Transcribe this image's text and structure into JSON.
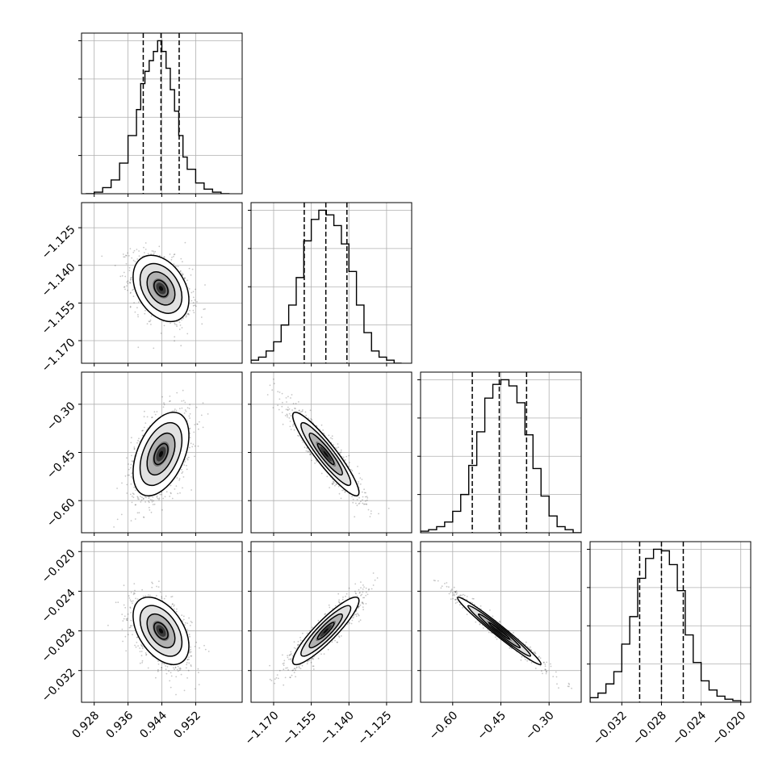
{
  "chart_data": {
    "type": "scatter",
    "kind": "corner-plot",
    "parameters": [
      "",
      "",
      "",
      ""
    ],
    "grid": true,
    "axes_ranges": [
      [
        0.925,
        0.963
      ],
      [
        -1.179,
        -1.115
      ],
      [
        -0.7,
        -0.2
      ],
      [
        -0.0352,
        -0.019
      ]
    ],
    "ticks": [
      {
        "values": [
          0.928,
          0.936,
          0.944,
          0.952
        ],
        "labels": [
          "0.928",
          "0.936",
          "0.944",
          "0.952"
        ]
      },
      {
        "values": [
          -1.17,
          -1.155,
          -1.14,
          -1.125
        ],
        "labels": [
          "−1.170",
          "−1.155",
          "−1.140",
          "−1.125"
        ]
      },
      {
        "values": [
          -0.6,
          -0.45,
          -0.3
        ],
        "labels": [
          "−0.60",
          "−0.45",
          "−0.30"
        ]
      },
      {
        "values": [
          -0.032,
          -0.028,
          -0.024,
          -0.02
        ],
        "labels": [
          "−0.032",
          "−0.028",
          "−0.024",
          "−0.020"
        ]
      }
    ],
    "quantiles": [
      [
        0.9396,
        0.9438,
        0.9481
      ],
      [
        -1.1578,
        -1.1492,
        -1.1408
      ],
      [
        -0.539,
        -0.455,
        -0.37
      ],
      [
        -0.0302,
        -0.028,
        -0.0258
      ]
    ],
    "histograms": [
      {
        "bins": [
          0.926,
          0.928,
          0.93,
          0.932,
          0.934,
          0.936,
          0.938,
          0.939,
          0.94,
          0.941,
          0.942,
          0.943,
          0.944,
          0.945,
          0.946,
          0.947,
          0.948,
          0.949,
          0.95,
          0.952,
          0.954,
          0.956,
          0.958,
          0.96
        ],
        "counts": [
          0.0,
          0.01,
          0.04,
          0.09,
          0.2,
          0.38,
          0.55,
          0.72,
          0.8,
          0.87,
          0.93,
          1.0,
          0.93,
          0.82,
          0.68,
          0.54,
          0.38,
          0.24,
          0.16,
          0.07,
          0.03,
          0.01,
          0.0
        ]
      },
      {
        "bins": [
          -1.179,
          -1.176,
          -1.173,
          -1.17,
          -1.167,
          -1.164,
          -1.161,
          -1.158,
          -1.155,
          -1.152,
          -1.149,
          -1.146,
          -1.143,
          -1.14,
          -1.137,
          -1.134,
          -1.131,
          -1.128,
          -1.125,
          -1.122,
          -1.119
        ],
        "counts": [
          0.02,
          0.04,
          0.08,
          0.14,
          0.25,
          0.38,
          0.56,
          0.8,
          0.94,
          1.0,
          0.97,
          0.9,
          0.78,
          0.6,
          0.38,
          0.2,
          0.08,
          0.04,
          0.02,
          0.0
        ]
      },
      {
        "bins": [
          -0.7,
          -0.675,
          -0.65,
          -0.625,
          -0.6,
          -0.575,
          -0.55,
          -0.525,
          -0.5,
          -0.475,
          -0.45,
          -0.425,
          -0.4,
          -0.375,
          -0.35,
          -0.325,
          -0.3,
          -0.275,
          -0.25,
          -0.225,
          -0.2
        ],
        "counts": [
          0.01,
          0.02,
          0.04,
          0.07,
          0.14,
          0.25,
          0.44,
          0.66,
          0.88,
          0.97,
          1.0,
          0.96,
          0.85,
          0.64,
          0.42,
          0.24,
          0.11,
          0.04,
          0.02,
          0.0
        ]
      },
      {
        "bins": [
          -0.0352,
          -0.0344,
          -0.0336,
          -0.0328,
          -0.032,
          -0.0312,
          -0.0304,
          -0.0296,
          -0.0288,
          -0.028,
          -0.0272,
          -0.0264,
          -0.0256,
          -0.0248,
          -0.024,
          -0.0232,
          -0.0224,
          -0.0216,
          -0.0208,
          -0.02
        ],
        "counts": [
          0.03,
          0.06,
          0.12,
          0.2,
          0.38,
          0.56,
          0.81,
          0.94,
          1.0,
          0.99,
          0.9,
          0.73,
          0.44,
          0.26,
          0.14,
          0.08,
          0.04,
          0.02,
          0.01
        ]
      }
    ],
    "means": [
      0.9438,
      -1.1492,
      -0.455,
      -0.028
    ],
    "sigmas": [
      0.0033,
      0.0066,
      0.065,
      0.0017
    ],
    "correlations": [
      [
        1.0,
        -0.35,
        0.45,
        -0.45
      ],
      [
        -0.35,
        1.0,
        -0.92,
        0.9
      ],
      [
        0.45,
        -0.92,
        1.0,
        -0.98
      ],
      [
        -0.45,
        0.9,
        -0.98,
        1.0
      ]
    ],
    "contour_levels_sigma": [
      0.5,
      1.0,
      1.5,
      2.0
    ]
  }
}
